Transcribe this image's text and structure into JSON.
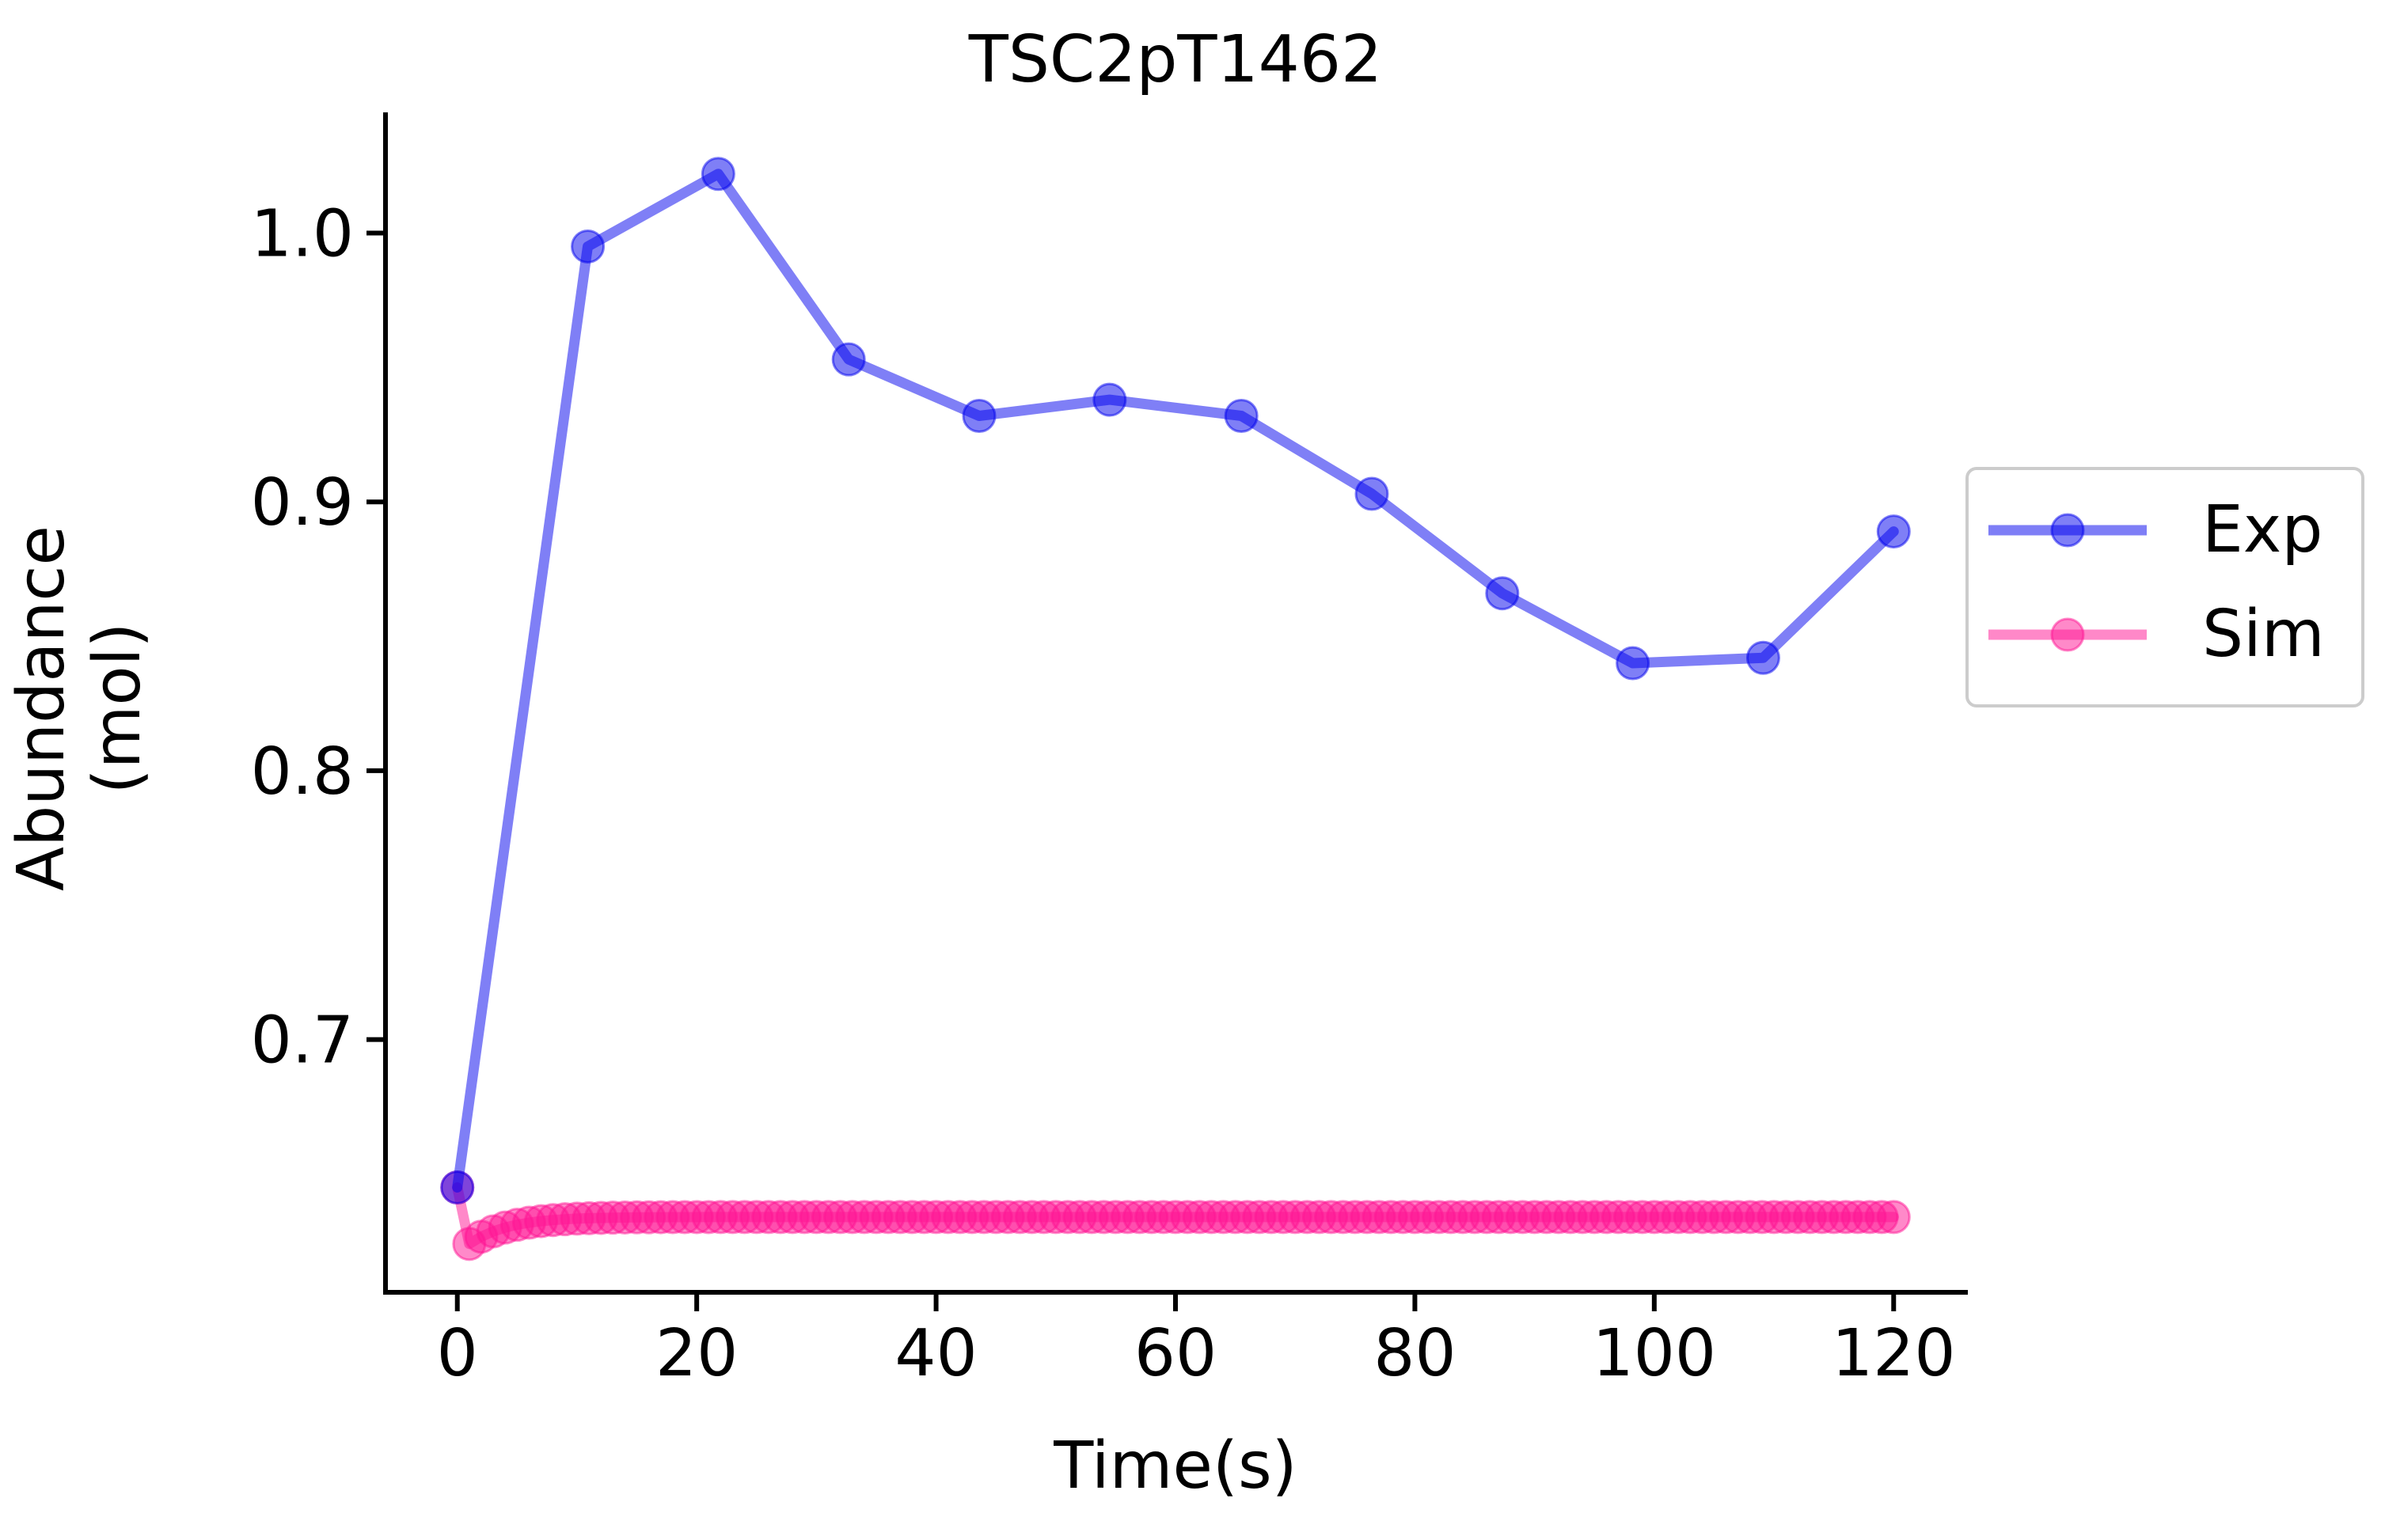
{
  "chart_data": {
    "type": "line",
    "title": "TSC2pT1462",
    "xlabel": "Time(s)",
    "ylabel_lines": [
      "Abundance",
      "(mol)"
    ],
    "xlim": [
      -6,
      126
    ],
    "ylim": [
      0.606,
      1.044
    ],
    "xticks": [
      0,
      20,
      40,
      60,
      80,
      100,
      120
    ],
    "yticks": [
      0.7,
      0.8,
      0.9,
      1.0
    ],
    "xtick_labels": [
      "0",
      "20",
      "40",
      "60",
      "80",
      "100",
      "120"
    ],
    "ytick_labels": [
      "0.7",
      "0.8",
      "0.9",
      "1.0"
    ],
    "grid": false,
    "legend_position": "right, outside plot",
    "series": [
      {
        "name": "Exp",
        "color": "#0000ee",
        "x": [
          0,
          10.9,
          21.8,
          32.7,
          43.6,
          54.5,
          65.5,
          76.4,
          87.3,
          98.2,
          109.1,
          120
        ],
        "y": [
          0.645,
          0.995,
          1.022,
          0.953,
          0.932,
          0.938,
          0.932,
          0.903,
          0.866,
          0.84,
          0.842,
          0.889
        ]
      },
      {
        "name": "Sim",
        "color": "#ff1493",
        "x_start": 0,
        "x_end": 120,
        "x_step": 1,
        "y_initial": 0.645,
        "y_min": 0.624,
        "y_steady": 0.634
      }
    ]
  }
}
